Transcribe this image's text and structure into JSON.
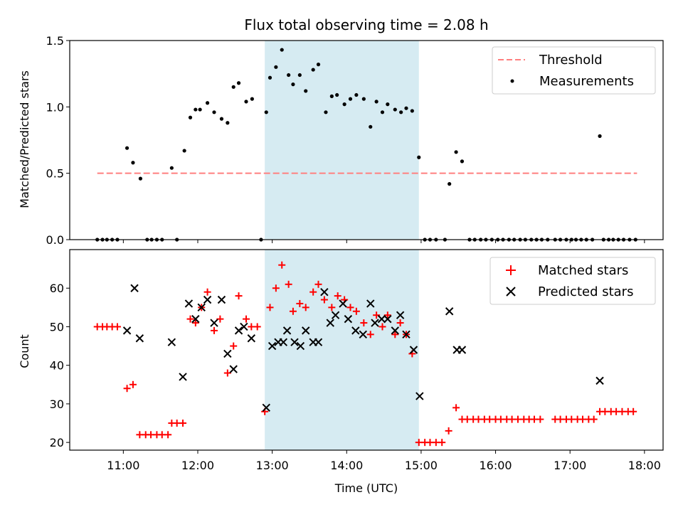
{
  "chart_data": {
    "type": "scatter",
    "title": "Flux total observing time = 2.08 h",
    "colors": {
      "threshold": "#ff7f7f",
      "measurement": "#000000",
      "matched": "#ff0000",
      "predicted": "#000000",
      "span": "#add8e6"
    },
    "highlight_span": {
      "start_hour": 12.9,
      "end_hour": 14.97
    },
    "x_axis": {
      "label": "Time (UTC)",
      "ticks": [
        {
          "value": 11,
          "label": "11:00"
        },
        {
          "value": 12,
          "label": "12:00"
        },
        {
          "value": 13,
          "label": "13:00"
        },
        {
          "value": 14,
          "label": "14:00"
        },
        {
          "value": 15,
          "label": "15:00"
        },
        {
          "value": 16,
          "label": "16:00"
        },
        {
          "value": 17,
          "label": "17:00"
        },
        {
          "value": 18,
          "label": "18:00"
        }
      ],
      "xlim": [
        10.28,
        18.25
      ]
    },
    "top_panel": {
      "ylabel": "Matched/Predicted stars",
      "ylim": [
        0,
        1.5
      ],
      "yticks": [
        "0.0",
        "0.5",
        "1.0",
        "1.5"
      ],
      "legend_position": "top-right",
      "threshold": {
        "name": "Threshold",
        "value": 0.5,
        "x_range": [
          10.65,
          17.9
        ]
      },
      "measurements": {
        "name": "Measurements",
        "x": [
          10.65,
          10.72,
          10.78,
          10.85,
          10.92,
          11.05,
          11.13,
          11.23,
          11.32,
          11.38,
          11.45,
          11.52,
          11.65,
          11.72,
          11.82,
          11.9,
          11.97,
          12.03,
          12.13,
          12.22,
          12.32,
          12.4,
          12.48,
          12.55,
          12.65,
          12.73,
          12.85,
          12.92,
          12.97,
          13.05,
          13.13,
          13.22,
          13.28,
          13.37,
          13.45,
          13.55,
          13.62,
          13.72,
          13.8,
          13.87,
          13.97,
          14.05,
          14.13,
          14.23,
          14.32,
          14.4,
          14.48,
          14.55,
          14.65,
          14.73,
          14.8,
          14.88,
          14.97,
          15.05,
          15.12,
          15.2,
          15.32,
          15.38,
          15.47,
          15.55,
          15.65,
          15.72,
          15.8,
          15.87,
          15.95,
          16.03,
          16.1,
          16.18,
          16.25,
          16.33,
          16.4,
          16.48,
          16.55,
          16.62,
          16.7,
          16.8,
          16.87,
          16.95,
          17.02,
          17.08,
          17.15,
          17.22,
          17.3,
          17.4,
          17.45,
          17.52,
          17.58,
          17.65,
          17.72,
          17.8,
          17.88
        ],
        "y": [
          0,
          0,
          0,
          0,
          0,
          0.69,
          0.58,
          0.46,
          0,
          0,
          0,
          0,
          0.54,
          0,
          0.67,
          0.92,
          0.98,
          0.98,
          1.03,
          0.96,
          0.91,
          0.88,
          1.15,
          1.18,
          1.04,
          1.06,
          0,
          0.96,
          1.22,
          1.3,
          1.43,
          1.24,
          1.17,
          1.24,
          1.12,
          1.28,
          1.32,
          0.96,
          1.08,
          1.09,
          1.02,
          1.06,
          1.09,
          1.06,
          0.85,
          1.04,
          0.96,
          1.02,
          0.98,
          0.96,
          0.99,
          0.97,
          0.62,
          0,
          0,
          0,
          0,
          0.42,
          0.66,
          0.59,
          0,
          0,
          0,
          0,
          0,
          0,
          0,
          0,
          0,
          0,
          0,
          0,
          0,
          0,
          0,
          0,
          0,
          0,
          0,
          0,
          0,
          0,
          0,
          0.78,
          0,
          0,
          0,
          0,
          0,
          0,
          0
        ]
      }
    },
    "bottom_panel": {
      "ylabel": "Count",
      "ylim": [
        18,
        70
      ],
      "yticks": [
        "20",
        "30",
        "40",
        "50",
        "60"
      ],
      "legend_position": "top-right",
      "matched": {
        "name": "Matched stars",
        "marker": "plus",
        "x": [
          10.65,
          10.72,
          10.78,
          10.85,
          10.92,
          11.05,
          11.13,
          11.22,
          11.3,
          11.37,
          11.45,
          11.52,
          11.6,
          11.65,
          11.72,
          11.8,
          11.9,
          11.97,
          12.05,
          12.13,
          12.22,
          12.3,
          12.4,
          12.48,
          12.55,
          12.65,
          12.72,
          12.8,
          12.9,
          12.97,
          13.05,
          13.13,
          13.22,
          13.28,
          13.37,
          13.45,
          13.55,
          13.62,
          13.7,
          13.8,
          13.88,
          13.97,
          14.05,
          14.13,
          14.23,
          14.32,
          14.4,
          14.48,
          14.55,
          14.65,
          14.72,
          14.8,
          14.88,
          14.97,
          15.05,
          15.12,
          15.2,
          15.28,
          15.37,
          15.47,
          15.55,
          15.62,
          15.7,
          15.77,
          15.85,
          15.92,
          16.0,
          16.07,
          16.15,
          16.22,
          16.3,
          16.38,
          16.45,
          16.52,
          16.6,
          16.8,
          16.87,
          16.95,
          17.02,
          17.1,
          17.17,
          17.25,
          17.32,
          17.4,
          17.47,
          17.55,
          17.62,
          17.7,
          17.78,
          17.85
        ],
        "y": [
          50,
          50,
          50,
          50,
          50,
          34,
          35,
          22,
          22,
          22,
          22,
          22,
          22,
          25,
          25,
          25,
          52,
          51,
          55,
          59,
          49,
          52,
          38,
          45,
          58,
          52,
          50,
          50,
          28,
          55,
          60,
          66,
          61,
          54,
          56,
          55,
          59,
          61,
          57,
          55,
          58,
          57,
          55,
          54,
          51,
          48,
          53,
          50,
          53,
          48,
          51,
          48,
          43,
          20,
          20,
          20,
          20,
          20,
          23,
          29,
          26,
          26,
          26,
          26,
          26,
          26,
          26,
          26,
          26,
          26,
          26,
          26,
          26,
          26,
          26,
          26,
          26,
          26,
          26,
          26,
          26,
          26,
          26,
          28,
          28,
          28,
          28,
          28,
          28,
          28
        ]
      },
      "predicted": {
        "name": "Predicted stars",
        "marker": "x",
        "x": [
          11.05,
          11.15,
          11.22,
          11.65,
          11.8,
          11.88,
          11.97,
          12.05,
          12.13,
          12.22,
          12.32,
          12.4,
          12.48,
          12.55,
          12.62,
          12.72,
          12.92,
          13.0,
          13.08,
          13.15,
          13.2,
          13.3,
          13.38,
          13.45,
          13.55,
          13.62,
          13.7,
          13.78,
          13.85,
          13.95,
          14.02,
          14.12,
          14.22,
          14.32,
          14.38,
          14.47,
          14.55,
          14.65,
          14.72,
          14.8,
          14.9,
          14.98,
          15.38,
          15.48,
          15.55,
          17.4
        ],
        "y": [
          49,
          60,
          47,
          46,
          37,
          56,
          52,
          55,
          57,
          51,
          57,
          43,
          39,
          49,
          50,
          47,
          29,
          45,
          46,
          46,
          49,
          46,
          45,
          49,
          46,
          46,
          59,
          51,
          53,
          56,
          52,
          49,
          48,
          56,
          51,
          52,
          52,
          49,
          53,
          48,
          44,
          32,
          54,
          44,
          44,
          36
        ]
      }
    }
  }
}
